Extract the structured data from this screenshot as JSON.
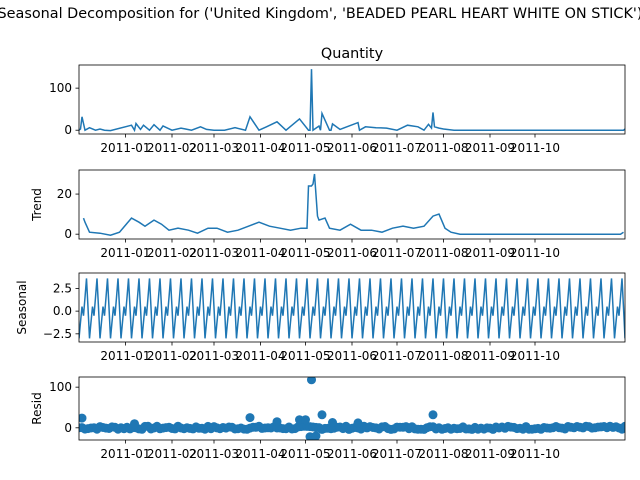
{
  "figure": {
    "suptitle": "Seasonal Decomposition for ('United Kingdom', 'BEADED PEARL HEART WHITE ON STICK')"
  },
  "colors": {
    "series": "#1f77b4",
    "axis": "#000000"
  },
  "chart_data": [
    {
      "type": "line",
      "title": "Quantity",
      "ylabel": "",
      "ylim": [
        -9,
        155
      ],
      "yticks": [
        0,
        100
      ],
      "xlim": [
        "2010-12-01",
        "2011-11-30"
      ],
      "xticks": [
        "2011-01",
        "2011-02",
        "2011-03",
        "2011-04",
        "2011-05",
        "2011-06",
        "2011-07",
        "2011-08",
        "2011-09",
        "2011-10"
      ],
      "x": [
        "2010-12-01",
        "2010-12-02",
        "2010-12-03",
        "2010-12-05",
        "2010-12-08",
        "2010-12-12",
        "2010-12-15",
        "2010-12-18",
        "2010-12-22",
        "2011-01-05",
        "2011-01-07",
        "2011-01-08",
        "2011-01-11",
        "2011-01-13",
        "2011-01-17",
        "2011-01-20",
        "2011-01-24",
        "2011-01-26",
        "2011-02-01",
        "2011-02-07",
        "2011-02-10",
        "2011-02-14",
        "2011-02-20",
        "2011-02-24",
        "2011-03-01",
        "2011-03-08",
        "2011-03-15",
        "2011-03-22",
        "2011-03-25",
        "2011-03-31",
        "2011-04-05",
        "2011-04-12",
        "2011-04-18",
        "2011-04-27",
        "2011-05-03",
        "2011-05-04",
        "2011-05-05",
        "2011-05-06",
        "2011-05-10",
        "2011-05-11",
        "2011-05-12",
        "2011-05-17",
        "2011-05-18",
        "2011-05-19",
        "2011-05-24",
        "2011-06-05",
        "2011-06-06",
        "2011-06-10",
        "2011-06-17",
        "2011-06-24",
        "2011-07-01",
        "2011-07-08",
        "2011-07-15",
        "2011-07-19",
        "2011-07-22",
        "2011-07-24",
        "2011-07-25",
        "2011-07-26",
        "2011-07-29",
        "2011-08-01",
        "2011-08-08",
        "2011-09-01",
        "2011-10-01",
        "2011-11-29",
        "2011-11-30"
      ],
      "values": [
        0,
        3,
        32,
        0,
        6,
        0,
        3,
        0,
        -1,
        12,
        0,
        16,
        2,
        12,
        0,
        13,
        0,
        10,
        0,
        5,
        3,
        0,
        8,
        2,
        0,
        0,
        6,
        0,
        32,
        0,
        8,
        20,
        0,
        27,
        0,
        0,
        145,
        0,
        10,
        0,
        40,
        0,
        0,
        15,
        2,
        18,
        0,
        8,
        6,
        5,
        0,
        12,
        8,
        0,
        14,
        5,
        42,
        8,
        5,
        3,
        0,
        0,
        0,
        0,
        3
      ]
    },
    {
      "type": "line",
      "title": "",
      "ylabel": "Trend",
      "ylim": [
        -2.4,
        32
      ],
      "yticks": [
        0,
        20
      ],
      "xlim": [
        "2010-12-01",
        "2011-11-30"
      ],
      "xticks": [
        "2011-01",
        "2011-02",
        "2011-03",
        "2011-04",
        "2011-05",
        "2011-06",
        "2011-07",
        "2011-08",
        "2011-09",
        "2011-10"
      ],
      "x": [
        "2010-12-04",
        "2010-12-05",
        "2010-12-08",
        "2010-12-15",
        "2010-12-22",
        "2010-12-28",
        "2011-01-05",
        "2011-01-10",
        "2011-01-14",
        "2011-01-20",
        "2011-01-25",
        "2011-01-30",
        "2011-02-05",
        "2011-02-12",
        "2011-02-18",
        "2011-02-25",
        "2011-03-03",
        "2011-03-10",
        "2011-03-17",
        "2011-03-24",
        "2011-03-31",
        "2011-04-07",
        "2011-04-14",
        "2011-04-21",
        "2011-04-28",
        "2011-05-02",
        "2011-05-03",
        "2011-05-05",
        "2011-05-06",
        "2011-05-07",
        "2011-05-09",
        "2011-05-10",
        "2011-05-14",
        "2011-05-17",
        "2011-05-24",
        "2011-05-31",
        "2011-06-07",
        "2011-06-14",
        "2011-06-21",
        "2011-06-28",
        "2011-07-05",
        "2011-07-12",
        "2011-07-19",
        "2011-07-25",
        "2011-07-29",
        "2011-08-02",
        "2011-08-06",
        "2011-08-12",
        "2011-09-01",
        "2011-10-01",
        "2011-11-27",
        "2011-11-29"
      ],
      "values": [
        8,
        6,
        1,
        0.5,
        -0.5,
        1,
        8,
        6,
        4,
        7,
        5,
        2,
        3,
        2,
        0.5,
        3,
        3,
        1,
        2,
        4,
        6,
        4,
        3,
        2,
        3,
        3,
        24,
        24,
        25,
        30,
        9,
        7,
        8,
        3,
        2,
        5,
        2,
        2,
        1,
        3,
        4,
        3,
        4,
        9,
        10,
        3,
        1,
        0,
        0,
        0,
        0,
        1
      ]
    },
    {
      "type": "line",
      "title": "",
      "ylabel": "Seasonal",
      "ylim": [
        -3.4,
        4.2
      ],
      "yticks": [
        -2.5,
        0.0,
        2.5
      ],
      "yticklabels": [
        "−2.5",
        "0.0",
        "2.5"
      ],
      "xlim": [
        "2010-12-01",
        "2011-11-30"
      ],
      "xticks": [
        "2011-01",
        "2011-02",
        "2011-03",
        "2011-04",
        "2011-05",
        "2011-06",
        "2011-07",
        "2011-08",
        "2011-09",
        "2011-10"
      ],
      "period_days": 7,
      "cycle_values": [
        -3.0,
        -1.2,
        0.5,
        -0.5,
        1.5,
        3.6,
        0.4
      ],
      "values_note": "weekly seasonal pattern repeated over the date range"
    },
    {
      "type": "scatter",
      "title": "",
      "ylabel": "Resid",
      "ylim": [
        -30,
        125
      ],
      "yticks": [
        0,
        100
      ],
      "xlim": [
        "2010-12-01",
        "2011-11-30"
      ],
      "xticks": [
        "2011-01",
        "2011-02",
        "2011-03",
        "2011-04",
        "2011-05",
        "2011-06",
        "2011-07",
        "2011-08",
        "2011-09",
        "2011-10"
      ],
      "outliers": [
        {
          "x": "2010-12-03",
          "y": 24
        },
        {
          "x": "2011-01-07",
          "y": 10
        },
        {
          "x": "2011-03-25",
          "y": 25
        },
        {
          "x": "2011-04-12",
          "y": 15
        },
        {
          "x": "2011-04-27",
          "y": 20
        },
        {
          "x": "2011-05-01",
          "y": 20
        },
        {
          "x": "2011-05-05",
          "y": 118
        },
        {
          "x": "2011-05-12",
          "y": 32
        },
        {
          "x": "2011-05-19",
          "y": 13
        },
        {
          "x": "2011-06-05",
          "y": 12
        },
        {
          "x": "2011-07-25",
          "y": 32
        },
        {
          "x": "2011-05-04",
          "y": -22
        },
        {
          "x": "2011-05-06",
          "y": -24
        },
        {
          "x": "2011-05-08",
          "y": -20
        }
      ]
    }
  ]
}
